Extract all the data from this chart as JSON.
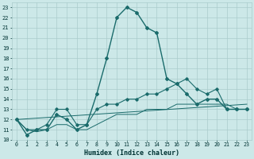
{
  "title": "",
  "xlabel": "Humidex (Indice chaleur)",
  "bg_color": "#cce8e8",
  "grid_color": "#aacccc",
  "line_color": "#1a6b6b",
  "xlim": [
    -0.5,
    23.5
  ],
  "ylim": [
    10,
    23.5
  ],
  "yticks": [
    10,
    11,
    12,
    13,
    14,
    15,
    16,
    17,
    18,
    19,
    20,
    21,
    22,
    23
  ],
  "xticks": [
    0,
    1,
    2,
    3,
    4,
    5,
    6,
    7,
    8,
    9,
    10,
    11,
    12,
    13,
    14,
    15,
    16,
    17,
    18,
    19,
    20,
    21,
    22,
    23
  ],
  "series1_x": [
    0,
    1,
    2,
    3,
    4,
    5,
    6,
    7,
    8,
    9,
    10,
    11,
    12,
    13,
    14,
    15,
    16,
    17,
    18,
    19,
    20,
    21,
    22,
    23
  ],
  "series1_y": [
    12,
    10.5,
    11,
    11,
    12.5,
    12,
    11,
    11.5,
    14.5,
    18,
    22,
    23,
    22.5,
    21,
    20.5,
    16,
    15.5,
    14.5,
    13.5,
    14,
    14,
    13,
    13,
    13
  ],
  "series2_x": [
    0,
    1,
    2,
    3,
    4,
    5,
    6,
    7,
    8,
    9,
    10,
    11,
    12,
    13,
    14,
    15,
    16,
    17,
    18,
    19,
    20,
    21,
    22,
    23
  ],
  "series2_y": [
    12,
    11,
    11,
    11.5,
    13,
    13,
    11.5,
    11.5,
    13,
    13.5,
    13.5,
    14,
    14,
    14.5,
    14.5,
    15,
    15.5,
    16,
    15,
    14.5,
    15,
    13,
    13,
    13
  ],
  "series3_x": [
    0,
    1,
    2,
    3,
    4,
    5,
    6,
    7,
    8,
    9,
    10,
    11,
    12,
    13,
    14,
    15,
    16,
    17,
    18,
    19,
    20,
    21,
    22,
    23
  ],
  "series3_y": [
    12,
    11,
    10.8,
    11,
    11.5,
    11.5,
    11,
    11,
    11.5,
    12,
    12.5,
    12.5,
    12.5,
    13,
    13,
    13,
    13.5,
    13.5,
    13.5,
    13.5,
    13.5,
    13.5,
    13,
    13
  ],
  "series4_x": [
    0,
    23
  ],
  "series4_y": [
    12,
    13.5
  ]
}
